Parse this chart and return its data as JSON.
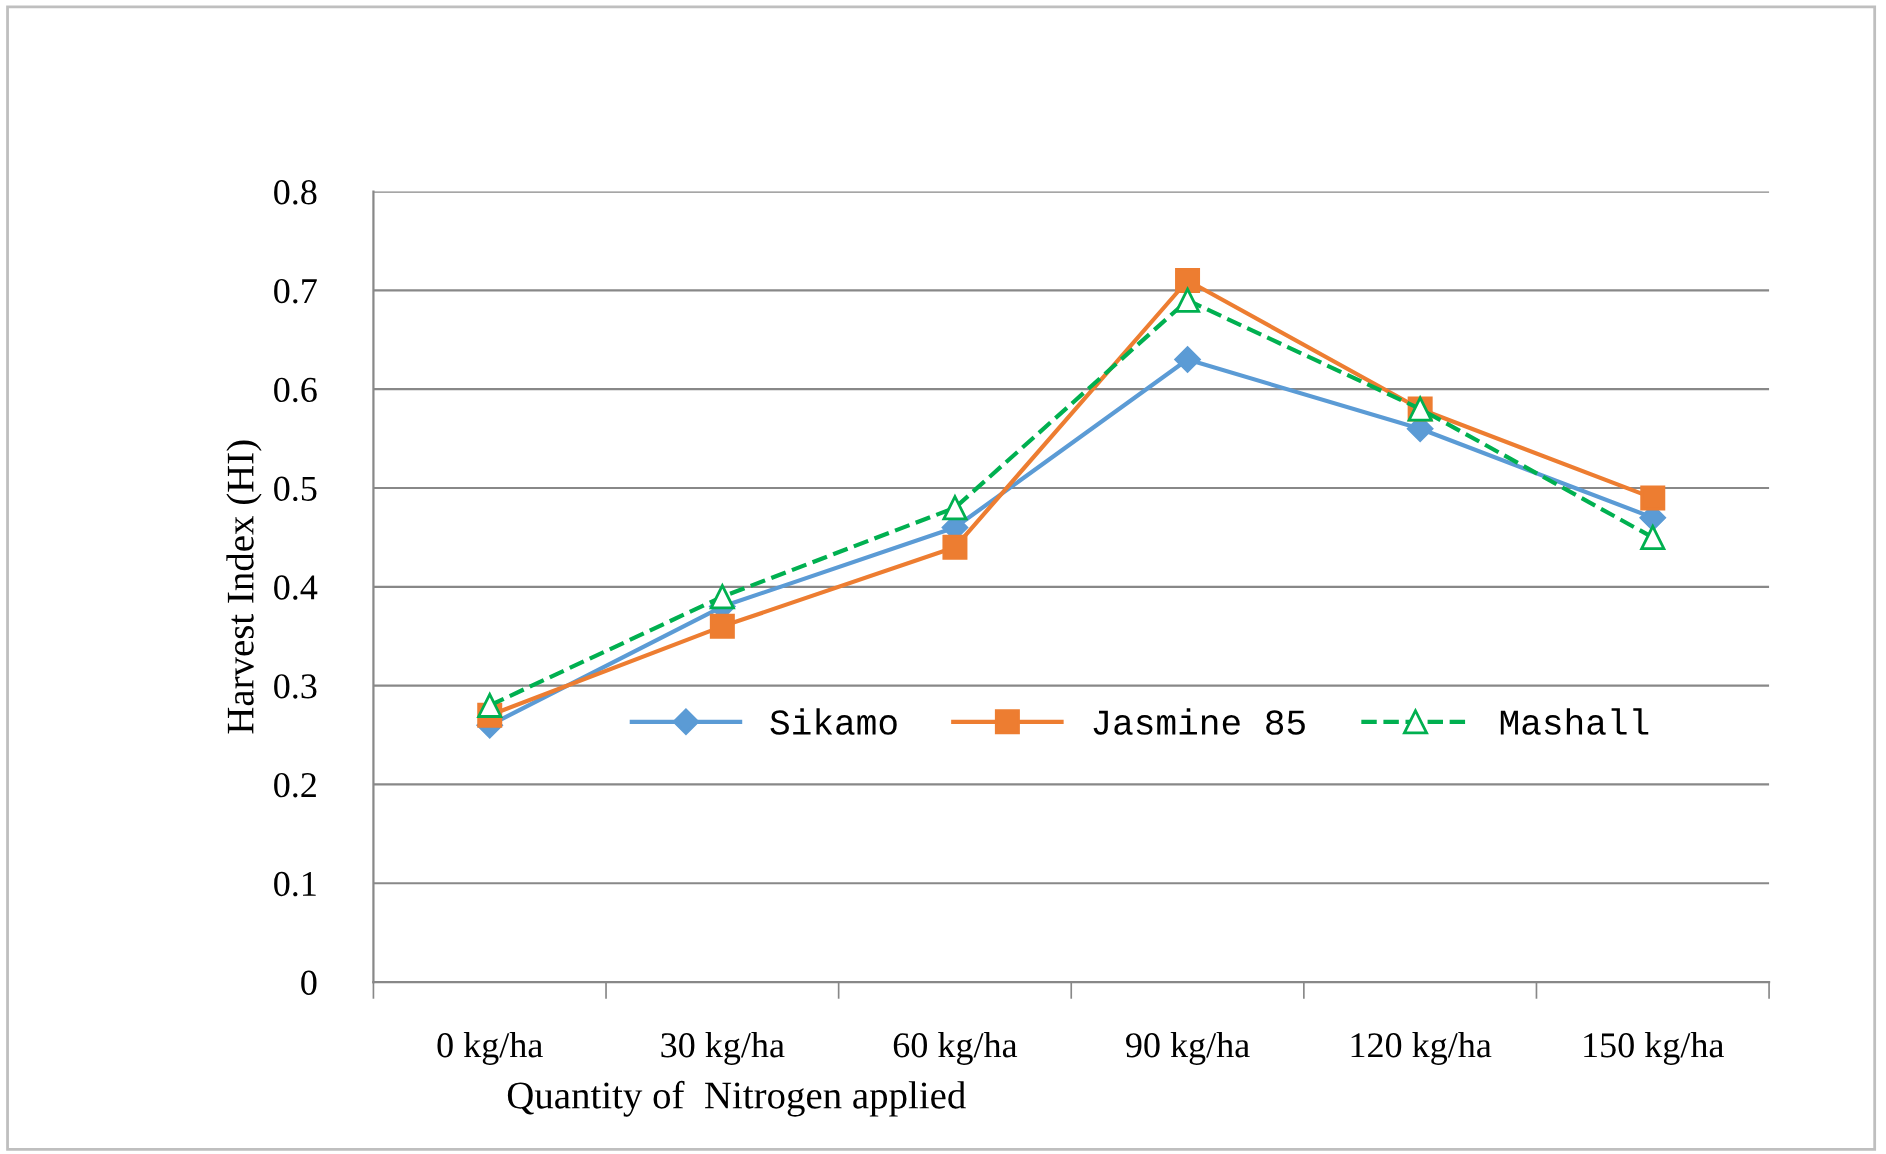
{
  "chart_data": {
    "type": "line",
    "ylabel": "Harvest Index (HI)",
    "xlabel": "Quantity of  Nitrogen applied",
    "categories": [
      "0 kg/ha",
      "30 kg/ha",
      "60 kg/ha",
      "90 kg/ha",
      "120 kg/ha",
      "150 kg/ha"
    ],
    "series": [
      {
        "name": "Sikamo",
        "color": "#5b9bd5",
        "marker": "diamond",
        "line_style": "solid",
        "values": [
          0.26,
          0.38,
          0.46,
          0.63,
          0.56,
          0.47
        ]
      },
      {
        "name": "Jasmine 85",
        "color": "#ed7d31",
        "marker": "square",
        "line_style": "solid",
        "values": [
          0.27,
          0.36,
          0.44,
          0.71,
          0.58,
          0.49
        ]
      },
      {
        "name": "Mashall",
        "color": "#00b050",
        "marker": "triangle",
        "line_style": "dashed",
        "values": [
          0.28,
          0.39,
          0.48,
          0.69,
          0.58,
          0.45
        ]
      }
    ],
    "ylim": [
      0,
      0.8
    ],
    "yticks": [
      {
        "value": 0,
        "label": "0"
      },
      0.1,
      0.2,
      0.3,
      0.4,
      0.5,
      0.6,
      0.7,
      0.8
    ],
    "grid": "y",
    "legend": "center"
  }
}
